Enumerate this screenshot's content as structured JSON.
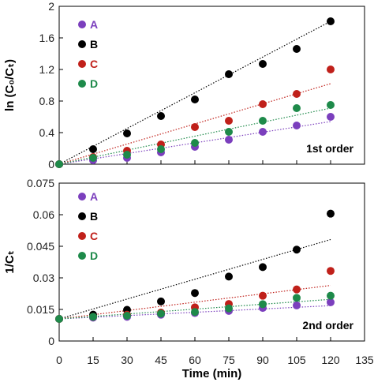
{
  "colors": {
    "A": "#7b3fbd",
    "B": "#000000",
    "C": "#c0201a",
    "D": "#1e8a4a"
  },
  "chart_data": [
    {
      "type": "scatter",
      "panel_label": "1st order",
      "ylabel": "ln (C₀/Cₜ)",
      "xlim": [
        0,
        135
      ],
      "ylim": [
        0,
        2
      ],
      "x_ticks": [
        0,
        15,
        30,
        45,
        60,
        75,
        90,
        105,
        120,
        135
      ],
      "y_ticks": [
        0,
        0.4,
        0.8,
        1.2,
        1.6,
        2
      ],
      "y_tick_labels": [
        "0",
        "0.4",
        "0.8",
        "1.2",
        "1.6",
        "2"
      ],
      "trendlines": true,
      "legend_position": "top-left",
      "x": [
        0,
        15,
        30,
        45,
        60,
        75,
        90,
        105,
        120
      ],
      "series": [
        {
          "name": "A",
          "values": [
            0,
            0.05,
            0.08,
            0.15,
            0.22,
            0.31,
            0.41,
            0.49,
            0.6
          ],
          "fit_end": 0.54
        },
        {
          "name": "B",
          "values": [
            0,
            0.19,
            0.39,
            0.61,
            0.82,
            1.14,
            1.27,
            1.46,
            1.81
          ],
          "fit_end": 1.81
        },
        {
          "name": "C",
          "values": [
            0,
            0.09,
            0.17,
            0.25,
            0.47,
            0.55,
            0.76,
            0.89,
            1.2
          ],
          "fit_end": 1.02
        },
        {
          "name": "D",
          "values": [
            0,
            0.08,
            0.12,
            0.19,
            0.27,
            0.41,
            0.55,
            0.71,
            0.75
          ],
          "fit_end": 0.71
        }
      ]
    },
    {
      "type": "scatter",
      "panel_label": "2nd order",
      "ylabel": "1/Cₜ",
      "xlabel": "Time (min)",
      "xlim": [
        0,
        135
      ],
      "ylim": [
        0,
        0.075
      ],
      "x_ticks": [
        0,
        15,
        30,
        45,
        60,
        75,
        90,
        105,
        120,
        135
      ],
      "y_ticks": [
        0,
        0.015,
        0.03,
        0.045,
        0.06,
        0.075
      ],
      "y_tick_labels": [
        "0",
        "0.015",
        "0.03",
        "0.045",
        "0.06",
        "0.075"
      ],
      "trendlines": true,
      "legend_position": "top-left",
      "x": [
        0,
        15,
        30,
        45,
        60,
        75,
        90,
        105,
        120
      ],
      "series": [
        {
          "name": "A",
          "values": [
            0.0105,
            0.0111,
            0.0115,
            0.0125,
            0.0133,
            0.0143,
            0.0157,
            0.0169,
            0.0184
          ],
          "fit_end": 0.0168
        },
        {
          "name": "B",
          "values": [
            0.0105,
            0.0125,
            0.0148,
            0.0188,
            0.0228,
            0.0306,
            0.0351,
            0.0434,
            0.0605
          ],
          "fit_end": 0.0482
        },
        {
          "name": "C",
          "values": [
            0.0105,
            0.0115,
            0.0125,
            0.0135,
            0.016,
            0.0176,
            0.0215,
            0.0245,
            0.0333
          ],
          "fit_end": 0.0264
        },
        {
          "name": "D",
          "values": [
            0.0105,
            0.0115,
            0.012,
            0.013,
            0.0138,
            0.0155,
            0.0175,
            0.0205,
            0.0215
          ],
          "fit_end": 0.0198
        }
      ]
    }
  ]
}
